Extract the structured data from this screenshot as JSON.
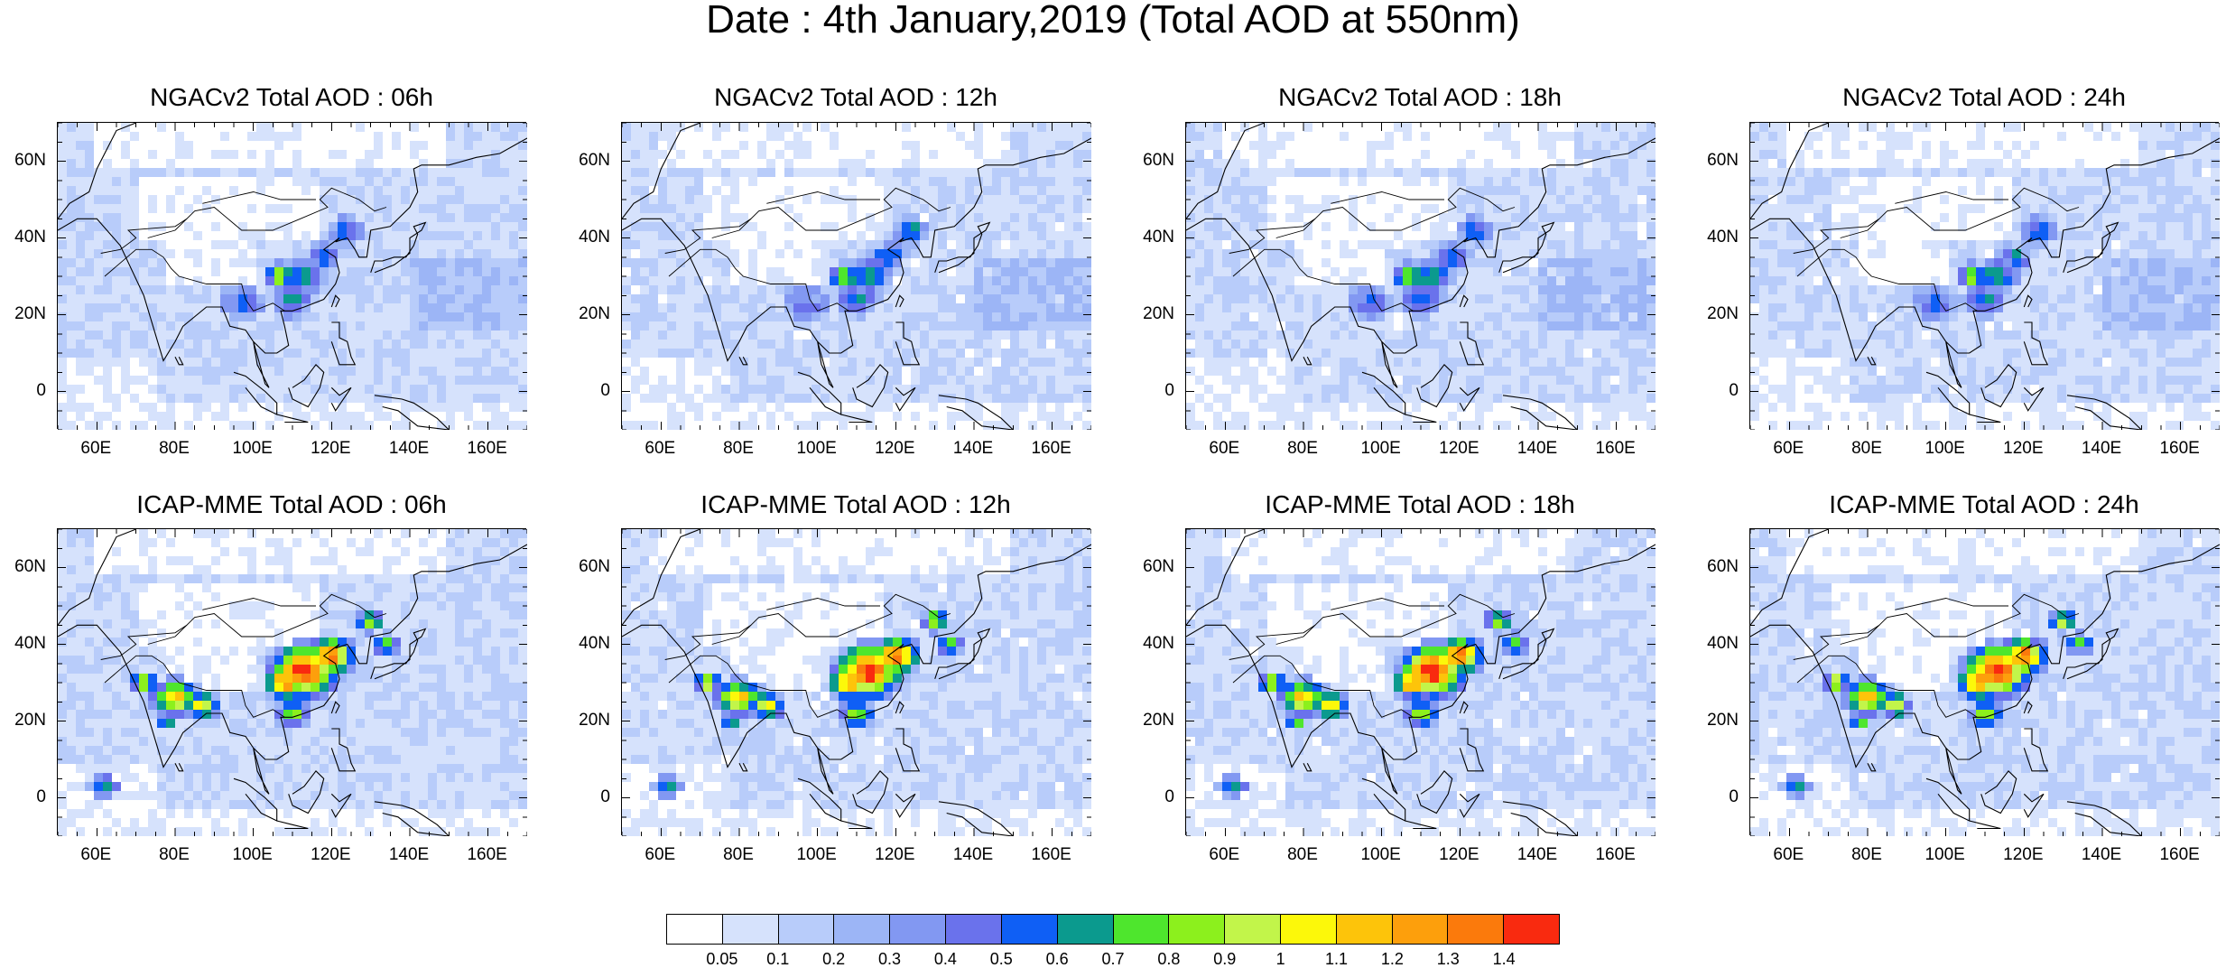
{
  "title": "Date : 4th January,2019 (Total AOD at 550nm)",
  "lat_labels": [
    "60N",
    "40N",
    "20N",
    "0"
  ],
  "lon_labels": [
    "60E",
    "80E",
    "100E",
    "120E",
    "140E",
    "160E"
  ],
  "panels": [
    {
      "title": "NGACv2 Total AOD : 06h",
      "model": "NGACv2",
      "hour": "06h"
    },
    {
      "title": "NGACv2 Total AOD : 12h",
      "model": "NGACv2",
      "hour": "12h"
    },
    {
      "title": "NGACv2 Total AOD : 18h",
      "model": "NGACv2",
      "hour": "18h"
    },
    {
      "title": "NGACv2 Total AOD : 24h",
      "model": "NGACv2",
      "hour": "24h"
    },
    {
      "title": "ICAP-MME Total AOD : 06h",
      "model": "ICAP-MME",
      "hour": "06h"
    },
    {
      "title": "ICAP-MME Total AOD : 12h",
      "model": "ICAP-MME",
      "hour": "12h"
    },
    {
      "title": "ICAP-MME Total AOD : 18h",
      "model": "ICAP-MME",
      "hour": "18h"
    },
    {
      "title": "ICAP-MME Total AOD : 24h",
      "model": "ICAP-MME",
      "hour": "24h"
    }
  ],
  "colorbar": {
    "labels": [
      "0.05",
      "0.1",
      "0.2",
      "0.3",
      "0.4",
      "0.5",
      "0.6",
      "0.7",
      "0.8",
      "0.9",
      "1",
      "1.1",
      "1.2",
      "1.3",
      "1.4"
    ],
    "colors": [
      "#ffffff",
      "#d6e2fc",
      "#b8ccfa",
      "#9cb5f6",
      "#8298f2",
      "#6a72ec",
      "#0f5ff5",
      "#0b9a8e",
      "#4ee62d",
      "#8cf01d",
      "#c2f54a",
      "#fcf80a",
      "#fdc40a",
      "#fd9f0c",
      "#fb7a0c",
      "#f92a0f"
    ]
  }
}
